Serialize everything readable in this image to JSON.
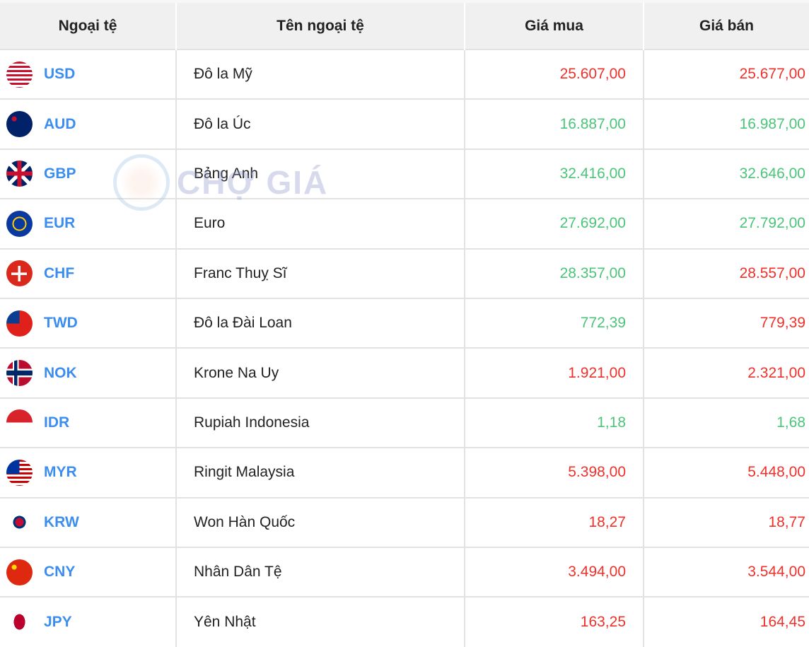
{
  "headers": [
    "Ngoại tệ",
    "Tên ngoại tệ",
    "Giá mua",
    "Giá bán"
  ],
  "watermark": "CHỢ GIÁ",
  "colors": {
    "code": "#3b8ef0",
    "up": "#4cc47a",
    "down": "#f0302a"
  },
  "rows": [
    {
      "code": "USD",
      "name": "Đô la Mỹ",
      "buy": "25.607,00",
      "buy_trend": "down",
      "sell": "25.677,00",
      "sell_trend": "down",
      "flag": "us-flag-icon"
    },
    {
      "code": "AUD",
      "name": "Đô la Úc",
      "buy": "16.887,00",
      "buy_trend": "up",
      "sell": "16.987,00",
      "sell_trend": "up",
      "flag": "au-flag-icon"
    },
    {
      "code": "GBP",
      "name": "Bảng Anh",
      "buy": "32.416,00",
      "buy_trend": "up",
      "sell": "32.646,00",
      "sell_trend": "up",
      "flag": "gb-flag-icon"
    },
    {
      "code": "EUR",
      "name": "Euro",
      "buy": "27.692,00",
      "buy_trend": "up",
      "sell": "27.792,00",
      "sell_trend": "up",
      "flag": "eu-flag-icon"
    },
    {
      "code": "CHF",
      "name": "Franc Thuỵ Sĩ",
      "buy": "28.357,00",
      "buy_trend": "up",
      "sell": "28.557,00",
      "sell_trend": "down",
      "flag": "ch-flag-icon"
    },
    {
      "code": "TWD",
      "name": "Đô la Đài Loan",
      "buy": "772,39",
      "buy_trend": "up",
      "sell": "779,39",
      "sell_trend": "down",
      "flag": "tw-flag-icon"
    },
    {
      "code": "NOK",
      "name": "Krone Na Uy",
      "buy": "1.921,00",
      "buy_trend": "down",
      "sell": "2.321,00",
      "sell_trend": "down",
      "flag": "no-flag-icon"
    },
    {
      "code": "IDR",
      "name": "Rupiah Indonesia",
      "buy": "1,18",
      "buy_trend": "up",
      "sell": "1,68",
      "sell_trend": "up",
      "flag": "id-flag-icon"
    },
    {
      "code": "MYR",
      "name": "Ringit Malaysia",
      "buy": "5.398,00",
      "buy_trend": "down",
      "sell": "5.448,00",
      "sell_trend": "down",
      "flag": "my-flag-icon"
    },
    {
      "code": "KRW",
      "name": "Won Hàn Quốc",
      "buy": "18,27",
      "buy_trend": "down",
      "sell": "18,77",
      "sell_trend": "down",
      "flag": "kr-flag-icon"
    },
    {
      "code": "CNY",
      "name": "Nhân Dân Tệ",
      "buy": "3.494,00",
      "buy_trend": "down",
      "sell": "3.544,00",
      "sell_trend": "down",
      "flag": "cn-flag-icon"
    },
    {
      "code": "JPY",
      "name": "Yên Nhật",
      "buy": "163,25",
      "buy_trend": "down",
      "sell": "164,45",
      "sell_trend": "down",
      "flag": "jp-flag-icon"
    }
  ]
}
